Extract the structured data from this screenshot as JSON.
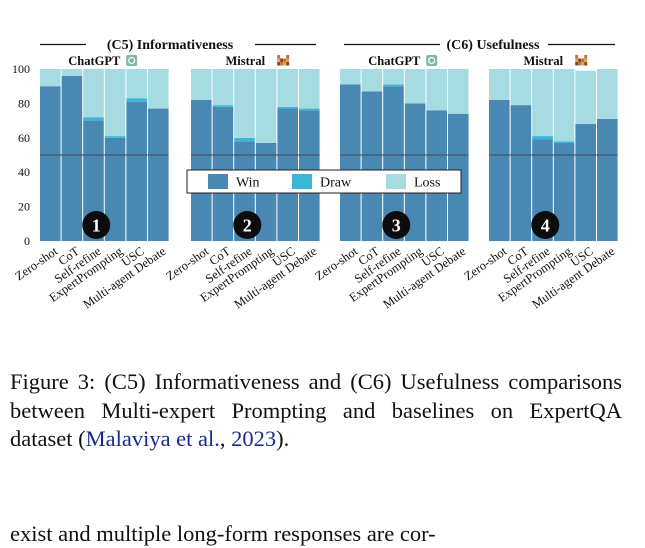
{
  "chart_data": {
    "type": "bar",
    "stacked": true,
    "groups": [
      {
        "section": "(C5) Informativeness",
        "model": "ChatGPT",
        "badge": "1"
      },
      {
        "section": "(C5) Informativeness",
        "model": "Mistral",
        "badge": "2"
      },
      {
        "section": "(C6) Usefulness",
        "model": "ChatGPT",
        "badge": "3"
      },
      {
        "section": "(C6) Usefulness",
        "model": "Mistral",
        "badge": "4"
      }
    ],
    "sections": [
      "(C5) Informativeness",
      "(C6) Usefulness"
    ],
    "categories": [
      "Zero-shot",
      "CoT",
      "Self-refine",
      "ExpertPrompting",
      "USC",
      "Multi-agent Debate"
    ],
    "ylim": [
      0,
      100
    ],
    "yticks": [
      0,
      20,
      40,
      60,
      80,
      100
    ],
    "reference_line": 50,
    "legend": {
      "position": "center",
      "entries": [
        "Win",
        "Draw",
        "Loss"
      ]
    },
    "colors": {
      "Win": "#4a88b4",
      "Draw": "#3bb6d6",
      "Loss": "#a6dbe2"
    },
    "series": [
      {
        "name": "Win",
        "values": [
          [
            90,
            96,
            70,
            60,
            81,
            77
          ],
          [
            82,
            78,
            58,
            57,
            77,
            76
          ],
          [
            91,
            87,
            90,
            80,
            76,
            74
          ],
          [
            82,
            79,
            59,
            57,
            68,
            71
          ]
        ]
      },
      {
        "name": "Draw",
        "values": [
          [
            0,
            0,
            2,
            1,
            2,
            0
          ],
          [
            0,
            1,
            2,
            0,
            1,
            1
          ],
          [
            0,
            0,
            1,
            0,
            0,
            0
          ],
          [
            0,
            0,
            2,
            1,
            0,
            0
          ]
        ]
      },
      {
        "name": "Loss",
        "values": [
          [
            10,
            4,
            28,
            39,
            17,
            23
          ],
          [
            18,
            21,
            40,
            43,
            22,
            23
          ],
          [
            9,
            13,
            9,
            20,
            24,
            26
          ],
          [
            18,
            21,
            39,
            42,
            31,
            29
          ]
        ]
      }
    ]
  },
  "caption": {
    "label": "Figure 3:",
    "text": "(C5) Informativeness and (C6) Usefulness comparisons between Multi-expert Prompting and baselines on ExpertQA dataset (",
    "cite_author": "Malaviya et al.",
    "cite_sep": ", ",
    "cite_year": "2023",
    "text_end": ")."
  },
  "body_text": "exist and multiple long-form responses are cor-"
}
